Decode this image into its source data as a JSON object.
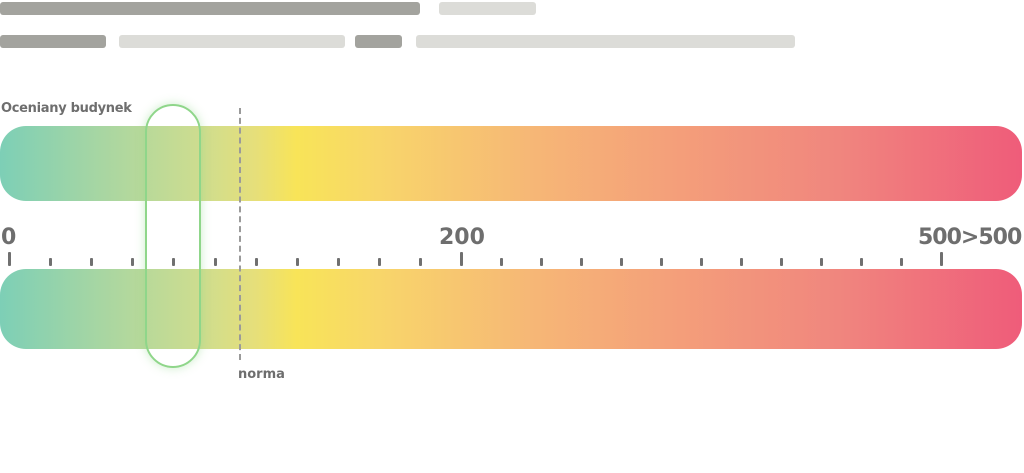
{
  "colors": {
    "start": "#7dcfb6",
    "mid": "#f8e458",
    "end": "#ef5c7a",
    "marker": "#8fd68a"
  },
  "labels": {
    "building": "Oceniany budynek",
    "norma": "norma"
  },
  "scale": {
    "tick_labels": [
      "0",
      "200",
      "500>500"
    ],
    "marker_value": 72,
    "norma_value": 102
  }
}
